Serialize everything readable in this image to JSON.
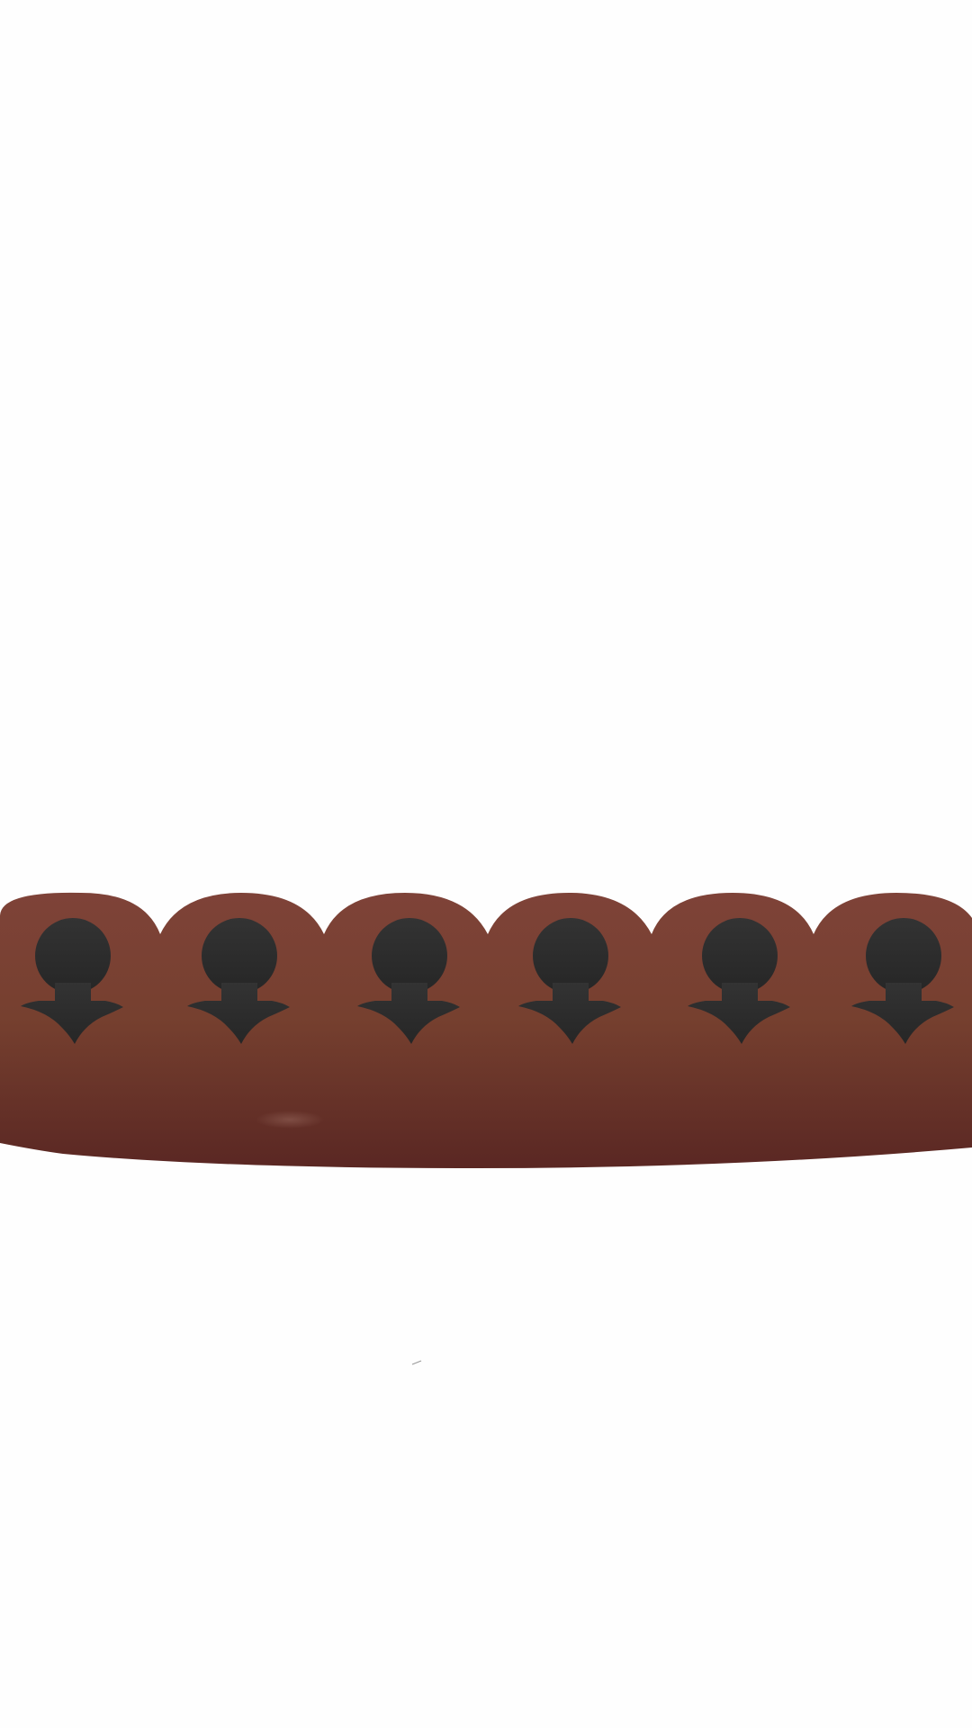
{
  "scene": {
    "background_color": "#fefefe",
    "board": {
      "name": "hole-board",
      "color_top": "#7e4238",
      "color_bottom": "#5a2723",
      "hole_count": 6,
      "hole_color": "#2b2b2b",
      "hole_icon": "keyhole-icon"
    }
  }
}
